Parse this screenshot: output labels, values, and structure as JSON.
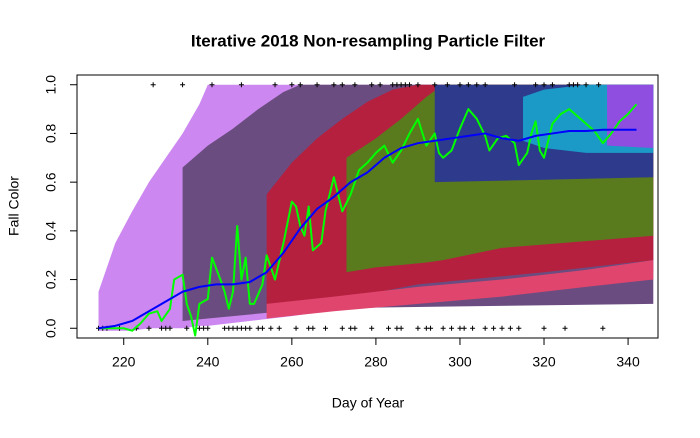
{
  "chart_data": {
    "type": "line",
    "title": "Iterative 2018 Non-resampling Particle Filter",
    "xlabel": "Day of Year",
    "ylabel": "Fall Color",
    "xlim": [
      208.88,
      347.12
    ],
    "ylim": [
      -0.04,
      1.04
    ],
    "xticks": [
      220,
      240,
      260,
      280,
      300,
      320,
      340
    ],
    "yticks": [
      {
        "value": 0,
        "label": "0.0"
      },
      0.2,
      0.4,
      0.6,
      0.8,
      {
        "value": 1,
        "label": "1.0"
      }
    ],
    "bands": [
      {
        "color": "#cc88f0",
        "x": [
          214,
          218,
          222,
          226,
          230,
          234,
          238,
          240,
          260,
          280,
          300,
          320,
          346
        ],
        "lower": [
          -0.01,
          -0.01,
          -0.01,
          0,
          0,
          0,
          0.01,
          0.01,
          0.05,
          0.1,
          0.14,
          0.18,
          0.23
        ],
        "upper": [
          0.15,
          0.35,
          0.48,
          0.6,
          0.7,
          0.8,
          0.92,
          1.0,
          1.0,
          1.0,
          1.0,
          1.0,
          1.0
        ]
      },
      {
        "color": "#6b4c80",
        "x": [
          234,
          240,
          246,
          252,
          258,
          262,
          300,
          346
        ],
        "lower": [
          0.03,
          0.04,
          0.05,
          0.06,
          0.07,
          0.08,
          0.09,
          0.1
        ],
        "upper": [
          0.66,
          0.75,
          0.82,
          0.9,
          0.97,
          1.0,
          1.0,
          1.0
        ]
      },
      {
        "color": "#b5203f",
        "x": [
          254,
          260,
          266,
          272,
          278,
          284,
          290,
          320,
          346
        ],
        "lower": [
          0.08,
          0.09,
          0.1,
          0.12,
          0.14,
          0.16,
          0.18,
          0.23,
          0.28
        ],
        "upper": [
          0.55,
          0.68,
          0.78,
          0.86,
          0.93,
          0.98,
          1.0,
          1.0,
          1.0
        ]
      },
      {
        "color": "#e0456e",
        "x": [
          254,
          270,
          290,
          310,
          330,
          346
        ],
        "lower": [
          0.04,
          0.07,
          0.1,
          0.13,
          0.17,
          0.2
        ],
        "upper": [
          0.1,
          0.13,
          0.17,
          0.2,
          0.24,
          0.28
        ]
      },
      {
        "color": "#5a7a1e",
        "x": [
          273,
          280,
          286,
          292,
          296,
          310,
          346
        ],
        "lower": [
          0.23,
          0.25,
          0.26,
          0.27,
          0.28,
          0.33,
          0.38
        ],
        "upper": [
          0.7,
          0.78,
          0.86,
          0.95,
          1.0,
          1.0,
          1.0
        ]
      },
      {
        "color": "#2e3a8c",
        "x": [
          294,
          320,
          346
        ],
        "lower": [
          0.6,
          0.61,
          0.62
        ],
        "upper": [
          1.0,
          1.0,
          1.0
        ]
      },
      {
        "color": "#1b9ac8",
        "x": [
          315,
          320,
          330,
          346
        ],
        "lower": [
          0.77,
          0.74,
          0.72,
          0.72
        ],
        "upper": [
          0.95,
          0.98,
          1.0,
          1.0
        ]
      },
      {
        "color": "#8f4ee0",
        "x": [
          335,
          346
        ],
        "lower": [
          0.75,
          0.74
        ],
        "upper": [
          1.0,
          1.0
        ]
      }
    ],
    "series": [
      {
        "color": "#00ff00",
        "x": [
          214,
          217,
          220,
          222,
          224,
          226,
          228,
          229,
          231,
          232,
          234,
          235,
          236,
          237,
          238,
          240,
          241,
          243,
          244,
          245,
          246,
          247,
          248,
          249,
          250,
          251,
          253,
          254,
          256,
          258,
          260,
          261,
          262,
          263,
          264,
          265,
          267,
          268,
          270,
          272,
          274,
          276,
          278,
          280,
          282,
          284,
          286,
          288,
          290,
          292,
          294,
          295,
          296,
          298,
          300,
          302,
          304,
          306,
          307,
          309,
          311,
          313,
          314,
          316,
          317,
          318,
          319,
          320,
          322,
          324,
          326,
          328,
          330,
          332,
          334,
          336,
          338,
          340,
          342
        ],
        "values": [
          0,
          0,
          0,
          -0.01,
          0.02,
          0.06,
          0.07,
          0.03,
          0.08,
          0.2,
          0.22,
          0.1,
          0.05,
          -0.03,
          0.1,
          0.12,
          0.29,
          0.2,
          0.15,
          0.08,
          0.15,
          0.42,
          0.2,
          0.29,
          0.1,
          0.1,
          0.18,
          0.3,
          0.2,
          0.35,
          0.52,
          0.5,
          0.42,
          0.38,
          0.5,
          0.32,
          0.35,
          0.48,
          0.62,
          0.48,
          0.55,
          0.65,
          0.68,
          0.72,
          0.75,
          0.68,
          0.73,
          0.8,
          0.86,
          0.75,
          0.8,
          0.72,
          0.7,
          0.73,
          0.82,
          0.9,
          0.86,
          0.79,
          0.73,
          0.78,
          0.79,
          0.76,
          0.67,
          0.72,
          0.8,
          0.85,
          0.73,
          0.7,
          0.84,
          0.88,
          0.9,
          0.87,
          0.84,
          0.81,
          0.76,
          0.8,
          0.85,
          0.88,
          0.92
        ]
      },
      {
        "color": "#0000ff",
        "x": [
          214,
          218,
          222,
          226,
          230,
          234,
          238,
          242,
          246,
          250,
          254,
          258,
          262,
          266,
          270,
          274,
          278,
          282,
          286,
          290,
          294,
          298,
          302,
          306,
          310,
          314,
          318,
          322,
          326,
          330,
          334,
          338,
          342
        ],
        "values": [
          0,
          0.01,
          0.03,
          0.07,
          0.11,
          0.15,
          0.17,
          0.18,
          0.18,
          0.19,
          0.23,
          0.31,
          0.41,
          0.49,
          0.54,
          0.6,
          0.64,
          0.7,
          0.74,
          0.76,
          0.77,
          0.78,
          0.79,
          0.8,
          0.78,
          0.77,
          0.79,
          0.8,
          0.81,
          0.81,
          0.815,
          0.815,
          0.815
        ]
      }
    ],
    "points": {
      "color": "#000000",
      "x": [
        227,
        234,
        241,
        248,
        256,
        260,
        262,
        266,
        270,
        272,
        275,
        279,
        281,
        284,
        285,
        286,
        287,
        288,
        290,
        294,
        297,
        300,
        302,
        304,
        306,
        313,
        318,
        320,
        322,
        326,
        327,
        328,
        330,
        333,
        214,
        215,
        216,
        219,
        223,
        226,
        229,
        230,
        231,
        235,
        238,
        239,
        240,
        244,
        245,
        246,
        247,
        248,
        249,
        250,
        252,
        253,
        255,
        257,
        261,
        264,
        265,
        268,
        272,
        274,
        275,
        279,
        283,
        285,
        286,
        290,
        292,
        293,
        296,
        298,
        300,
        301,
        303,
        306,
        308,
        310,
        312,
        314,
        320,
        325,
        334
      ],
      "y": [
        1,
        1,
        1,
        1,
        1,
        1,
        1,
        1,
        1,
        1,
        1,
        1,
        1,
        1,
        1,
        1,
        1,
        1,
        1,
        1,
        1,
        1,
        1,
        1,
        1,
        1,
        1,
        1,
        1,
        1,
        1,
        1,
        1,
        1,
        0,
        0,
        0,
        0,
        0,
        0,
        0,
        0,
        0,
        0,
        0,
        0,
        0,
        0,
        0,
        0,
        0,
        0,
        0,
        0,
        0,
        0,
        0,
        0,
        0,
        0,
        0,
        0,
        0,
        0,
        0,
        0,
        0,
        0,
        0,
        0,
        0,
        0,
        0,
        0,
        0,
        0,
        0,
        0,
        0,
        0,
        0,
        0,
        0,
        0,
        0
      ]
    }
  }
}
